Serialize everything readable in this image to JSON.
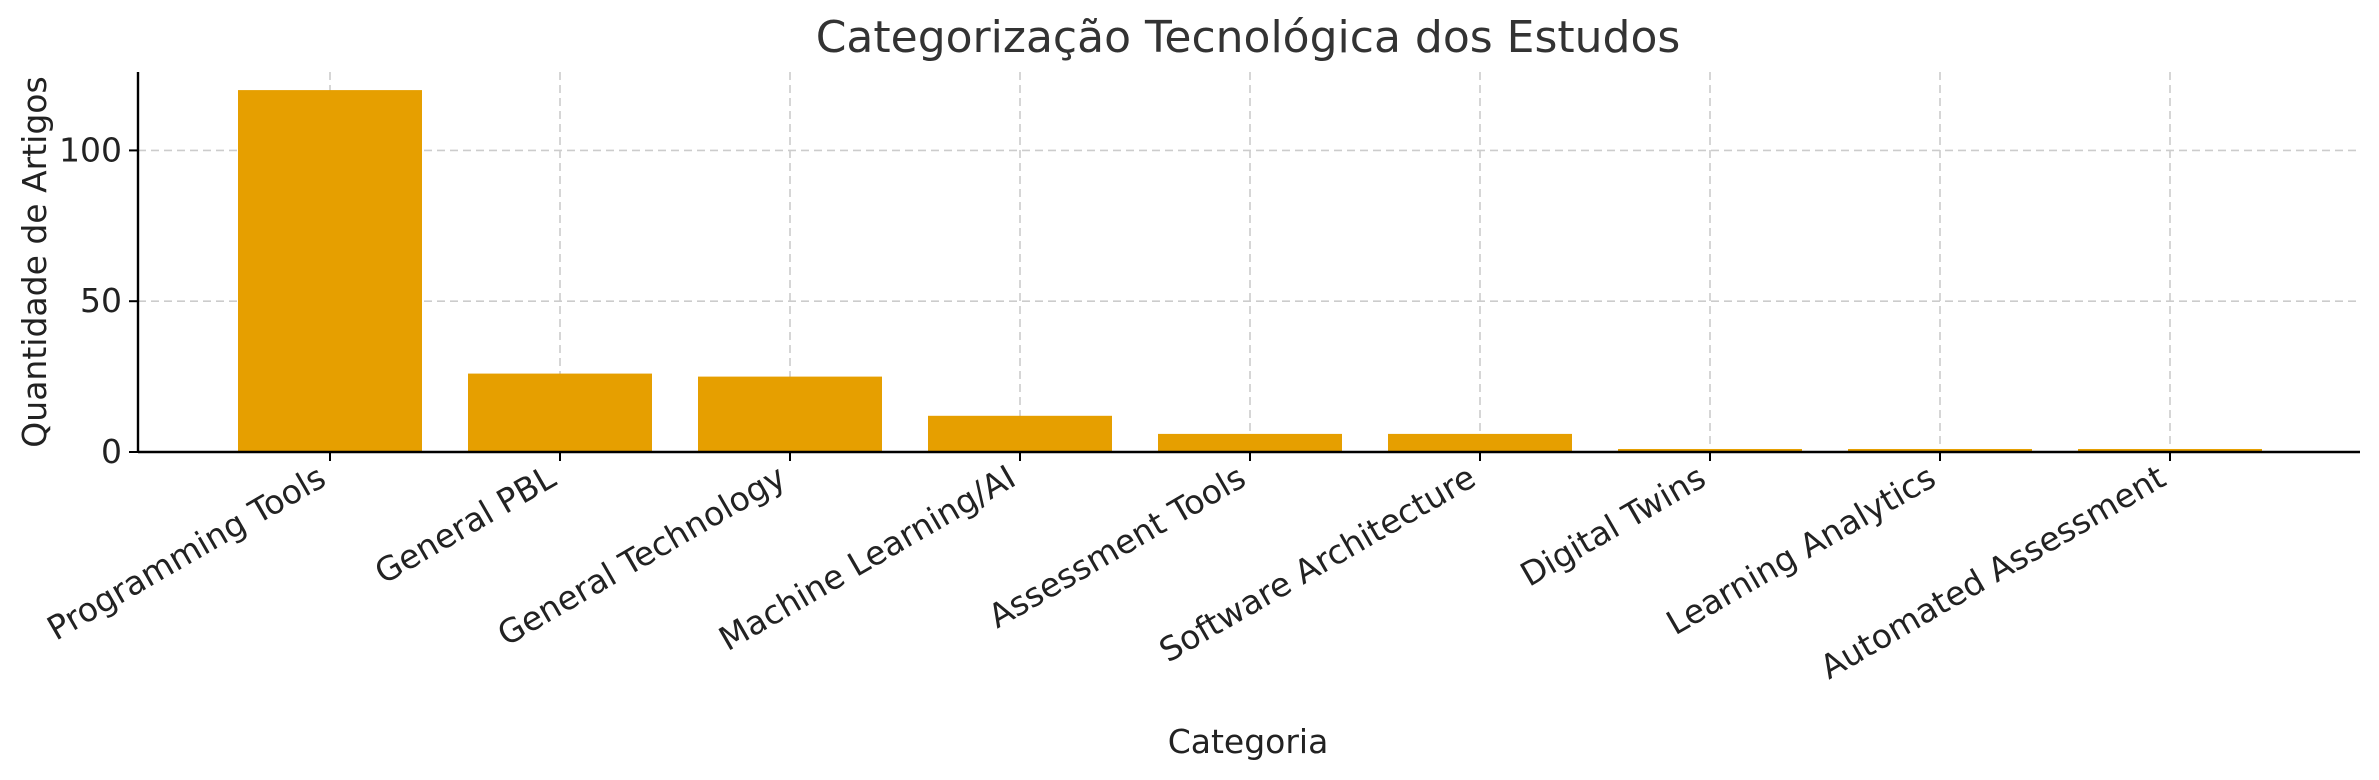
{
  "chart_data": {
    "type": "bar",
    "title": "Categorização Tecnológica dos Estudos",
    "xlabel": "Categoria",
    "ylabel": "Quantidade de Artigos",
    "categories": [
      "Programming Tools",
      "General PBL",
      "General Technology",
      "Machine Learning/AI",
      "Assessment Tools",
      "Software Architecture",
      "Digital Twins",
      "Learning Analytics",
      "Automated Assessment"
    ],
    "values": [
      120,
      26,
      25,
      12,
      6,
      6,
      1,
      1,
      1
    ],
    "ylim": [
      0,
      126
    ],
    "yticks": [
      0,
      50,
      100
    ],
    "grid": true,
    "bar_color": "#E69F00"
  }
}
